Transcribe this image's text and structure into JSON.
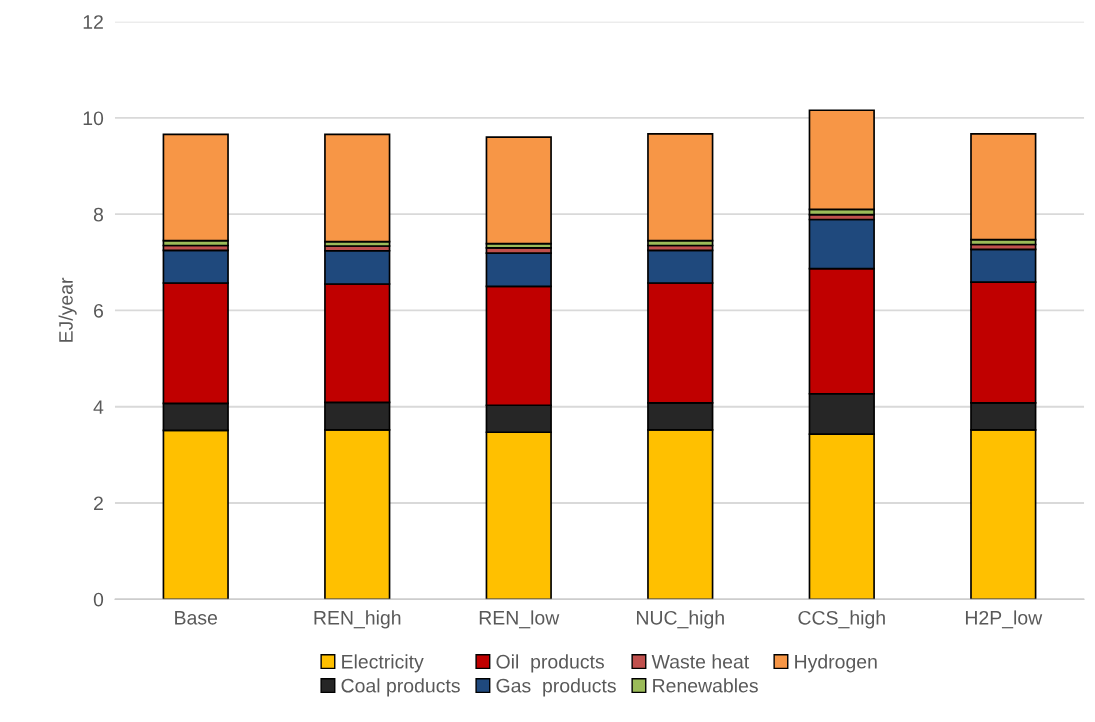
{
  "chart_data": {
    "type": "bar",
    "stacked": true,
    "ylabel": "EJ/year",
    "categories": [
      "Base",
      "REN_high",
      "REN_low",
      "NUC_high",
      "CCS_high",
      "H2P_low"
    ],
    "series": [
      {
        "name": "Electricity",
        "color": "#ffc000",
        "values": [
          3.51,
          3.52,
          3.47,
          3.52,
          3.43,
          3.52
        ]
      },
      {
        "name": "Coal products",
        "color": "#262626",
        "values": [
          0.56,
          0.57,
          0.56,
          0.56,
          0.84,
          0.56
        ]
      },
      {
        "name": "Oil  products",
        "color": "#c00000",
        "values": [
          2.5,
          2.46,
          2.47,
          2.49,
          2.6,
          2.51
        ]
      },
      {
        "name": "Gas  products",
        "color": "#1f497d",
        "values": [
          0.68,
          0.69,
          0.69,
          0.68,
          1.02,
          0.68
        ]
      },
      {
        "name": "Waste heat",
        "color": "#c0504d",
        "values": [
          0.1,
          0.1,
          0.11,
          0.1,
          0.1,
          0.1
        ]
      },
      {
        "name": "Renewables",
        "color": "#9bbb59",
        "values": [
          0.1,
          0.09,
          0.09,
          0.1,
          0.11,
          0.1
        ]
      },
      {
        "name": "Hydrogen",
        "color": "#f79646",
        "values": [
          2.21,
          2.23,
          2.21,
          2.22,
          2.06,
          2.2
        ]
      }
    ],
    "ylim": [
      0,
      12
    ],
    "yticks": [
      0,
      2,
      4,
      6,
      8,
      10,
      12
    ],
    "grid": "y",
    "legend": "bottom"
  }
}
